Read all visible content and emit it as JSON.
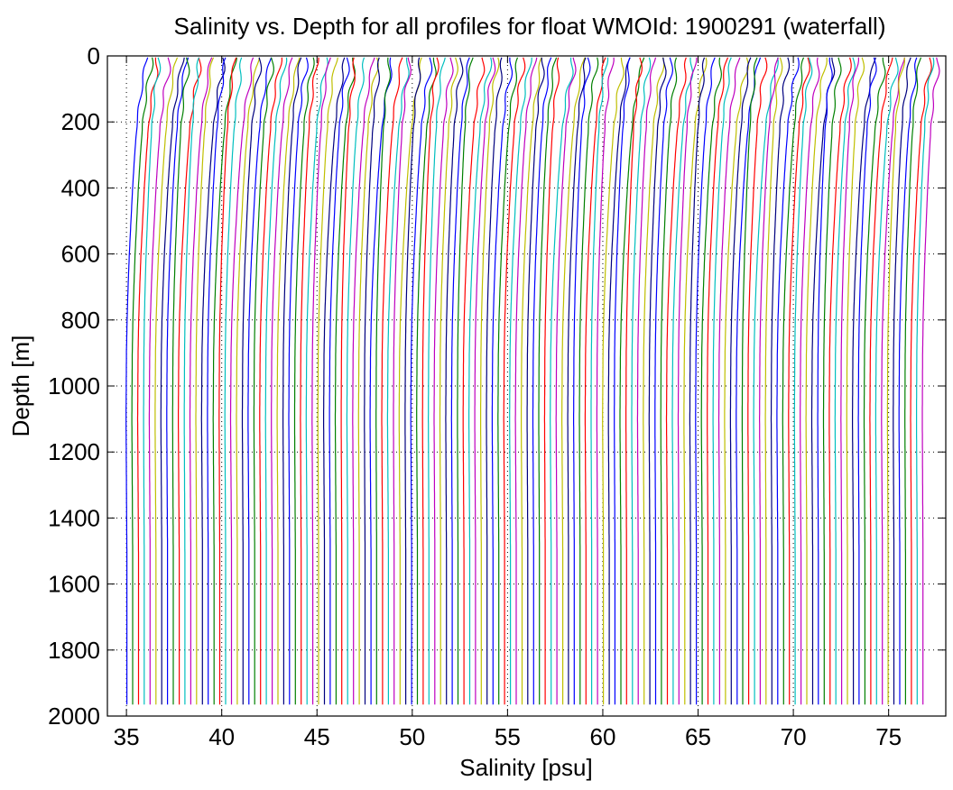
{
  "chart_data": {
    "type": "line",
    "title": "Salinity vs. Depth for all profiles for float WMOId: 1900291 (waterfall)",
    "xlabel": "Salinity [psu]",
    "ylabel": "Depth [m]",
    "xlim": [
      34,
      78
    ],
    "ylim": [
      2000,
      0
    ],
    "y_reversed": true,
    "grid": "dotted",
    "xticks": [
      35,
      40,
      45,
      50,
      55,
      60,
      65,
      70,
      75
    ],
    "yticks": [
      0,
      200,
      400,
      600,
      800,
      1000,
      1200,
      1400,
      1600,
      1800,
      2000
    ],
    "waterfall": {
      "profile_count": 138,
      "first_profile_deep_salinity": 35.0,
      "salinity_offset_per_profile": 0.305,
      "min_depth": 5,
      "max_depth": 1965,
      "shape_depths": [
        5,
        50,
        100,
        150,
        200,
        300,
        400,
        500,
        600,
        700,
        800,
        900,
        1000,
        1100,
        1200,
        1300,
        1400,
        1500,
        1600,
        1700,
        1800,
        1900,
        1965
      ],
      "shape_offsets": [
        0.95,
        0.9,
        0.72,
        0.62,
        0.52,
        0.4,
        0.3,
        0.22,
        0.14,
        0.08,
        0.03,
        0.0,
        -0.01,
        -0.02,
        -0.01,
        0.0,
        0.01,
        0.02,
        0.02,
        0.02,
        0.02,
        0.02,
        0.02
      ]
    },
    "series_colors": [
      "#0000ff",
      "#008000",
      "#ff0000",
      "#00bfbf",
      "#bf00bf",
      "#bfbf00",
      "#00007f"
    ]
  }
}
